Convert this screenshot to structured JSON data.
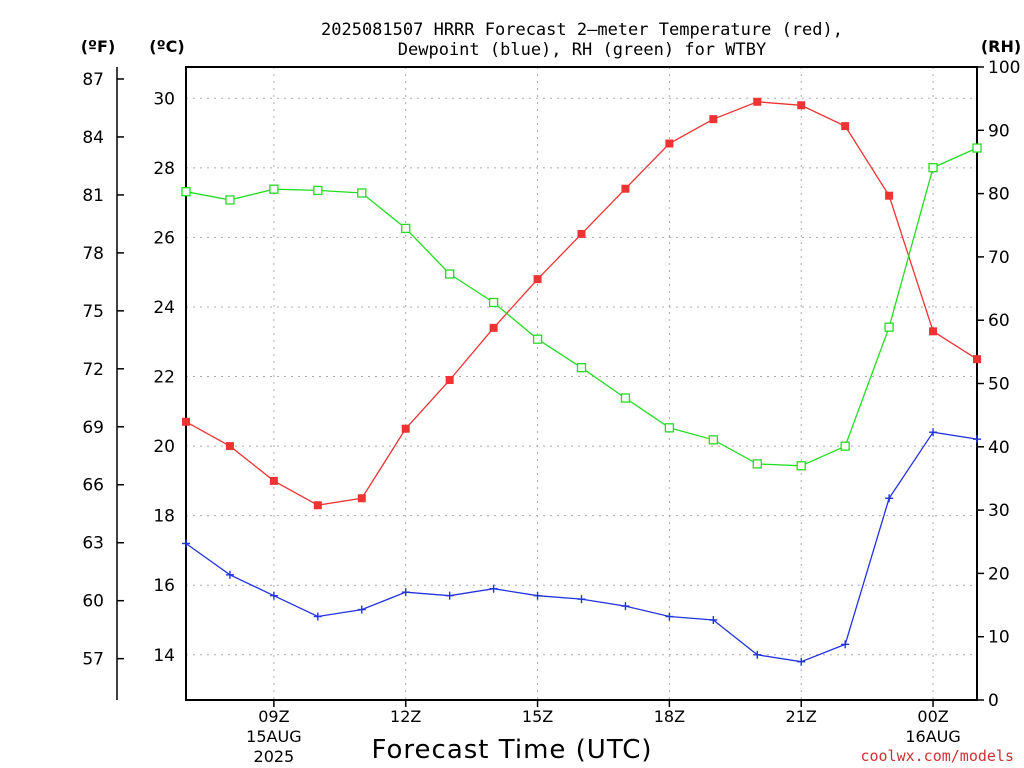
{
  "header": {
    "title_line1": "2025081507 HRRR Forecast 2—meter Temperature (red),",
    "title_line2": "Dewpoint (blue), RH (green) for WTBY",
    "unit_f": "(ºF)",
    "unit_c": "(ºC)",
    "unit_rh": "(RH)",
    "xlabel": "Forecast Time (UTC)",
    "credit": "coolwx.com/models"
  },
  "colors": {
    "temperature": "#ee3333",
    "dewpoint": "#2233dd",
    "rh": "#22dd22",
    "grid": "#aaaaaa",
    "credit": "#cc3333"
  },
  "chart_data": {
    "type": "line",
    "x_axis": {
      "unit": "forecast hour from 2025-08-15 07Z",
      "range": [
        0,
        18
      ],
      "ticks": [
        {
          "hour": 2,
          "label": "09Z",
          "sub1": "15AUG",
          "sub2": "2025"
        },
        {
          "hour": 5,
          "label": "12Z",
          "sub1": "",
          "sub2": ""
        },
        {
          "hour": 8,
          "label": "15Z",
          "sub1": "",
          "sub2": ""
        },
        {
          "hour": 11,
          "label": "18Z",
          "sub1": "",
          "sub2": ""
        },
        {
          "hour": 14,
          "label": "21Z",
          "sub1": "",
          "sub2": ""
        },
        {
          "hour": 17,
          "label": "00Z",
          "sub1": "16AUG",
          "sub2": ""
        }
      ]
    },
    "y_celsius": {
      "range": [
        12.7,
        30.9
      ],
      "ticks": [
        14,
        16,
        18,
        20,
        22,
        24,
        26,
        28,
        30
      ]
    },
    "y_fahrenheit": {
      "ticks": [
        57,
        60,
        63,
        66,
        69,
        72,
        75,
        78,
        81,
        84,
        87
      ]
    },
    "y_rh": {
      "range": [
        0,
        100
      ],
      "ticks": [
        0,
        10,
        20,
        30,
        40,
        50,
        60,
        70,
        80,
        90,
        100
      ]
    },
    "grid": true,
    "series": [
      {
        "name": "Temperature",
        "unit": "C",
        "marker": "filled-square",
        "hours": [
          0,
          1,
          2,
          3,
          4,
          5,
          6,
          7,
          8,
          9,
          10,
          11,
          12,
          13,
          14,
          15,
          16,
          17,
          18
        ],
        "values": [
          20.7,
          20.0,
          19.0,
          18.3,
          18.5,
          20.5,
          21.9,
          23.4,
          24.8,
          26.1,
          27.4,
          28.7,
          29.4,
          29.9,
          29.8,
          29.2,
          27.2,
          23.3,
          22.5
        ]
      },
      {
        "name": "Dewpoint",
        "unit": "C",
        "marker": "plus",
        "hours": [
          0,
          1,
          2,
          3,
          4,
          5,
          6,
          7,
          8,
          9,
          10,
          11,
          12,
          13,
          14,
          15,
          16,
          17,
          18
        ],
        "values": [
          17.2,
          16.3,
          15.7,
          15.1,
          15.3,
          15.8,
          15.7,
          15.9,
          15.7,
          15.6,
          15.4,
          15.1,
          15.0,
          14.0,
          13.8,
          14.3,
          18.5,
          20.4,
          20.2
        ]
      },
      {
        "name": "Relative Humidity",
        "unit": "%",
        "marker": "open-square",
        "hours": [
          0,
          1,
          2,
          3,
          4,
          5,
          6,
          7,
          8,
          9,
          10,
          11,
          12,
          13,
          14,
          15,
          16,
          17,
          18
        ],
        "values": [
          80.3,
          79.0,
          80.7,
          80.5,
          80.1,
          74.5,
          67.3,
          62.8,
          57.0,
          52.5,
          47.7,
          43.0,
          41.1,
          37.3,
          37.0,
          40.1,
          58.9,
          84.1,
          87.2
        ]
      }
    ]
  }
}
